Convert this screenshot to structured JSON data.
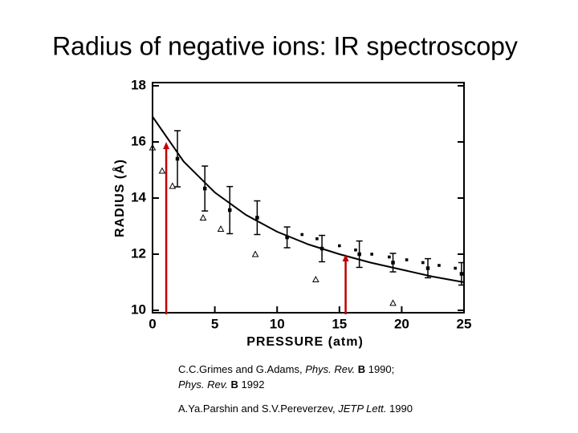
{
  "chart_data": {
    "type": "scatter",
    "title": "Radius of negative ions: IR spectroscopy",
    "x_label": "PRESSURE (atm)",
    "y_label": "RADIUS (Å)",
    "xlim": [
      0,
      25
    ],
    "xticks": [
      0,
      5,
      10,
      15,
      20,
      25
    ],
    "ylim": [
      10,
      18
    ],
    "yticks": [
      10,
      12,
      14,
      16,
      18
    ],
    "series": [
      {
        "kind": "errorbar",
        "color": "#000000",
        "x": [
          2.0,
          4.2,
          6.2,
          8.4,
          10.8,
          13.6,
          16.6,
          19.3,
          22.1,
          24.8
        ],
        "values": [
          15.4,
          14.34,
          13.57,
          13.3,
          12.6,
          12.2,
          12.0,
          11.7,
          11.5,
          11.3
        ],
        "errors": [
          1.0,
          0.8,
          0.84,
          0.6,
          0.37,
          0.47,
          0.47,
          0.33,
          0.34,
          0.4
        ]
      },
      {
        "kind": "triangle",
        "color": "#000000",
        "x": [
          0.0,
          0.77,
          1.6,
          4.06,
          5.48,
          8.25,
          13.1,
          19.3
        ],
        "values": [
          15.8,
          14.97,
          14.43,
          13.3,
          12.9,
          12.0,
          11.1,
          10.26
        ]
      },
      {
        "kind": "dot",
        "color": "#000000",
        "x": [
          12.0,
          13.2,
          15.0,
          16.3,
          17.6,
          19.0,
          20.4,
          21.7,
          23.0,
          24.3
        ],
        "values": [
          12.7,
          12.55,
          12.3,
          12.15,
          12.0,
          11.9,
          11.8,
          11.7,
          11.6,
          11.5
        ]
      },
      {
        "kind": "curve",
        "color": "#000000",
        "x": [
          0,
          2.5,
          5,
          7.5,
          10,
          12.5,
          15,
          17.5,
          20,
          22.5,
          25
        ],
        "values": [
          16.9,
          15.3,
          14.2,
          13.4,
          12.8,
          12.35,
          12.0,
          11.7,
          11.45,
          11.2,
          11.0
        ]
      },
      {
        "kind": "arrow",
        "color": "#c00000",
        "x": [
          1.1,
          15.5
        ],
        "values": [
          16.0,
          12.0
        ]
      }
    ],
    "citations": [
      [
        {
          "text": "C.C.Grimes and G.Adams, ",
          "style": "normal"
        },
        {
          "text": "Phys. Rev.",
          "style": "italic"
        },
        {
          "text": " B",
          "style": "bold"
        },
        {
          "text": " 1990;",
          "style": "normal"
        }
      ],
      [
        {
          "text": "Phys. Rev.",
          "style": "italic"
        },
        {
          "text": " B",
          "style": "bold"
        },
        {
          "text": " 1992",
          "style": "normal"
        }
      ],
      [
        {
          "text": "A.Ya.Parshin and S.V.Pereverzev, ",
          "style": "normal"
        },
        {
          "text": "JETP Lett.",
          "style": "italic"
        },
        {
          "text": " 1990",
          "style": "normal"
        }
      ]
    ]
  }
}
